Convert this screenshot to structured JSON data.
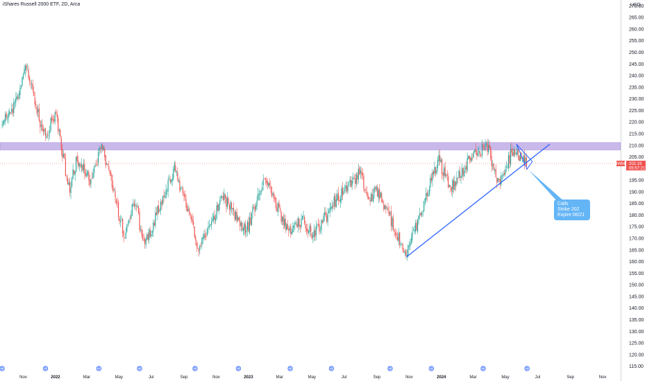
{
  "chart_data": {
    "type": "candlestick",
    "title": "iShares Russell 2000 ETF, 2D, Arca",
    "currency_label": "USD",
    "y_ticks": [
      115,
      120,
      125,
      130,
      135,
      140,
      145,
      150,
      155,
      160,
      165,
      170,
      175,
      180,
      185,
      190,
      195,
      200,
      205,
      210,
      215,
      220,
      225,
      230,
      235,
      240,
      245,
      250,
      255,
      260,
      265,
      270
    ],
    "y_tick_labels": [
      "115.00",
      "120.00",
      "125.00",
      "130.00",
      "135.00",
      "140.00",
      "145.00",
      "150.00",
      "155.00",
      "160.00",
      "165.00",
      "170.00",
      "175.00",
      "180.00",
      "185.00",
      "190.00",
      "195.00",
      "200.00",
      "205.00",
      "210.00",
      "215.00",
      "220.00",
      "225.00",
      "230.00",
      "235.00",
      "240.00",
      "245.00",
      "250.00",
      "255.00",
      "260.00",
      "265.00",
      "270.00"
    ],
    "ylim": [
      112.5,
      272.5
    ],
    "x_start": "2021-09-18",
    "x_end": "2024-12-05",
    "x_ticks": [
      {
        "label": "Nov",
        "date": "2021-11-01",
        "bold": false
      },
      {
        "label": "2022",
        "date": "2022-01-01",
        "bold": true
      },
      {
        "label": "Mar",
        "date": "2022-03-01",
        "bold": false
      },
      {
        "label": "May",
        "date": "2022-05-01",
        "bold": false
      },
      {
        "label": "Jul",
        "date": "2022-07-01",
        "bold": false
      },
      {
        "label": "Sep",
        "date": "2022-09-01",
        "bold": false
      },
      {
        "label": "Nov",
        "date": "2022-11-01",
        "bold": false
      },
      {
        "label": "2023",
        "date": "2023-01-01",
        "bold": true
      },
      {
        "label": "Mar",
        "date": "2023-03-01",
        "bold": false
      },
      {
        "label": "May",
        "date": "2023-05-01",
        "bold": false
      },
      {
        "label": "Jul",
        "date": "2023-07-01",
        "bold": false
      },
      {
        "label": "Sep",
        "date": "2023-09-01",
        "bold": false
      },
      {
        "label": "Nov",
        "date": "2023-11-01",
        "bold": false
      },
      {
        "label": "2024",
        "date": "2024-01-01",
        "bold": true
      },
      {
        "label": "Mar",
        "date": "2024-03-01",
        "bold": false
      },
      {
        "label": "May",
        "date": "2024-05-01",
        "bold": false
      },
      {
        "label": "Jul",
        "date": "2024-07-01",
        "bold": false
      },
      {
        "label": "Sep",
        "date": "2024-09-01",
        "bold": false
      },
      {
        "label": "Nov",
        "date": "2024-11-01",
        "bold": false
      }
    ],
    "keypoints": [
      [
        "2021-09-20",
        218
      ],
      [
        "2021-10-20",
        229
      ],
      [
        "2021-11-08",
        244
      ],
      [
        "2021-12-01",
        221
      ],
      [
        "2021-12-15",
        215
      ],
      [
        "2022-01-01",
        224
      ],
      [
        "2022-01-27",
        190
      ],
      [
        "2022-02-10",
        204
      ],
      [
        "2022-03-08",
        195
      ],
      [
        "2022-03-29",
        210
      ],
      [
        "2022-05-12",
        171
      ],
      [
        "2022-06-01",
        187
      ],
      [
        "2022-06-16",
        166
      ],
      [
        "2022-08-15",
        200
      ],
      [
        "2022-09-30",
        165
      ],
      [
        "2022-11-15",
        188
      ],
      [
        "2022-12-28",
        173
      ],
      [
        "2023-02-02",
        197
      ],
      [
        "2023-03-15",
        173
      ],
      [
        "2023-04-15",
        178
      ],
      [
        "2023-05-04",
        171
      ],
      [
        "2023-06-20",
        188
      ],
      [
        "2023-07-31",
        198
      ],
      [
        "2023-08-18",
        186
      ],
      [
        "2023-09-01",
        191
      ],
      [
        "2023-10-27",
        163
      ],
      [
        "2023-12-27",
        204
      ],
      [
        "2024-01-17",
        191
      ],
      [
        "2024-02-05",
        197
      ],
      [
        "2024-02-28",
        205
      ],
      [
        "2024-03-28",
        210
      ],
      [
        "2024-04-18",
        193
      ],
      [
        "2024-05-15",
        208
      ],
      [
        "2024-06-11",
        202
      ]
    ],
    "resistance_zone": [
      208.0,
      211.2
    ],
    "trendline": {
      "from": [
        "2023-10-27",
        162.0
      ],
      "to": [
        "2024-07-24",
        210.5
      ]
    },
    "wedge": [
      [
        "2024-05-22",
        210.5
      ],
      [
        "2024-06-21",
        203.0
      ],
      [
        "2024-06-11",
        199.8
      ]
    ],
    "price_line": 202.19,
    "last_price": {
      "ticker": "IWM",
      "value": "202.19",
      "countdown": "05:57:21"
    },
    "callout": {
      "lines": [
        "Calls",
        "Strike 202",
        "Expire 06/21"
      ]
    },
    "dividend_marker": {
      "letter": "D"
    },
    "dividend_dates": [
      "2021-09-22",
      "2021-12-13",
      "2022-03-24",
      "2022-06-09",
      "2022-09-22",
      "2022-12-13",
      "2023-03-21",
      "2023-06-07",
      "2023-09-26",
      "2023-12-13",
      "2024-03-20",
      "2024-06-11"
    ],
    "colors": {
      "up": "#26a69a",
      "down": "#ef5350",
      "zone": "#9c7ed9",
      "trend": "#2962ff",
      "callout": "#64b5f6",
      "price_label": "#ef5350"
    }
  }
}
